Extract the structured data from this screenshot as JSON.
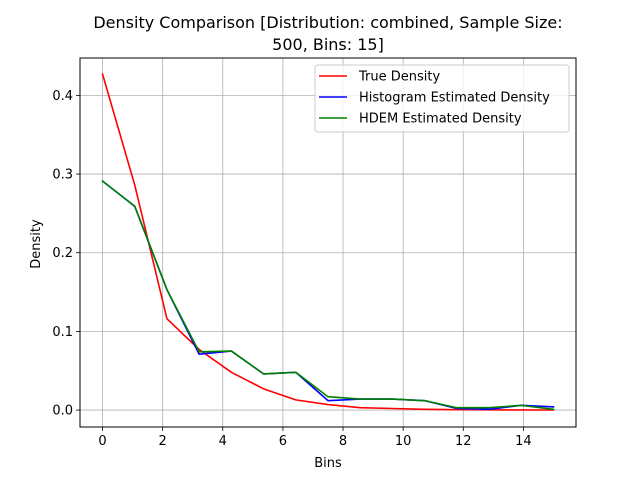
{
  "chart_data": {
    "type": "line",
    "title_line1": "Density Comparison [Distribution: combined, Sample Size:",
    "title_line2": "500, Bins: 15]",
    "xlabel": "Bins",
    "ylabel": "Density",
    "xlim": [
      -0.75,
      15.75
    ],
    "ylim": [
      -0.0215,
      0.4475
    ],
    "xticks": [
      0,
      2,
      4,
      6,
      8,
      10,
      12,
      14
    ],
    "yticks": [
      0.0,
      0.1,
      0.2,
      0.3,
      0.4
    ],
    "ytick_labels": [
      "0.0",
      "0.1",
      "0.2",
      "0.3",
      "0.4"
    ],
    "grid": true,
    "legend_position": "top-right",
    "x": [
      0,
      1.0714,
      2.1429,
      3.2143,
      4.2857,
      5.3571,
      6.4286,
      7.5,
      8.5714,
      9.6429,
      10.7143,
      11.7857,
      12.8571,
      13.9286,
      15
    ],
    "series": [
      {
        "name": "True Density",
        "color": "#ff0000",
        "values": [
          0.427,
          0.286,
          0.116,
          0.077,
          0.048,
          0.027,
          0.013,
          0.007,
          0.003,
          0.002,
          0.001,
          0.0005,
          0.0003,
          0.0002,
          0.0001
        ]
      },
      {
        "name": "Histogram Estimated Density",
        "color": "#0000ff",
        "values": [
          0.291,
          0.259,
          0.153,
          0.071,
          0.075,
          0.046,
          0.048,
          0.012,
          0.014,
          0.014,
          0.012,
          0.002,
          0.001,
          0.006,
          0.004
        ]
      },
      {
        "name": "HDEM Estimated Density",
        "color": "#008000",
        "values": [
          0.291,
          0.259,
          0.153,
          0.074,
          0.075,
          0.046,
          0.048,
          0.017,
          0.014,
          0.014,
          0.012,
          0.003,
          0.003,
          0.006,
          0.001
        ]
      }
    ]
  }
}
